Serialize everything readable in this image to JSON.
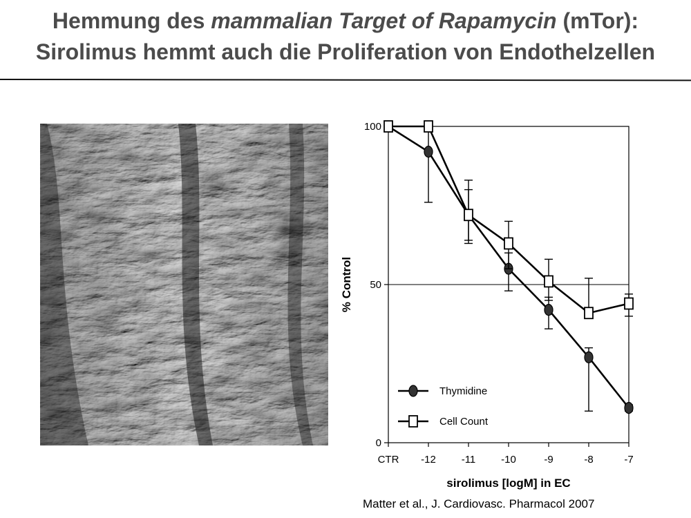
{
  "slide": {
    "title_line1_prefix": "Hemmung des ",
    "title_line1_italic": "mammalian Target of Rapamycin",
    "title_line1_suffix": " (mTor):",
    "title_line2": "Sirolimus hemmt auch die Proliferation von Endothelzellen",
    "title_color": "#4b4b4b",
    "citation": "Matter et al., J. Cardiovasc. Pharmacol 2007"
  },
  "image": {
    "description_icon": "sem-micrograph-icon"
  },
  "chart_data": {
    "type": "line",
    "categories": [
      "CTR",
      "-12",
      "-11",
      "-10",
      "-9",
      "-8",
      "-7"
    ],
    "xlabel": "sirolimus [logM] in EC",
    "ylabel": "% Control",
    "ylim": [
      0,
      100
    ],
    "yticks": [
      0,
      50,
      100
    ],
    "reference_line": 50,
    "grid": false,
    "legend_position": "bottom-left",
    "series": [
      {
        "name": "Thymidine",
        "marker": "filled-ellipse",
        "values": [
          100,
          92,
          72,
          55,
          42,
          27,
          11
        ],
        "err_upper": [
          100,
          100,
          80,
          60,
          46,
          30,
          12
        ],
        "err_lower": [
          100,
          76,
          64,
          48,
          36,
          10,
          10
        ]
      },
      {
        "name": "Cell Count",
        "marker": "open-square",
        "values": [
          100,
          100,
          72,
          63,
          51,
          41,
          44
        ],
        "err_upper": [
          100,
          100,
          83,
          70,
          58,
          52,
          47
        ],
        "err_lower": [
          100,
          100,
          63,
          55,
          45,
          41,
          40
        ]
      }
    ]
  }
}
